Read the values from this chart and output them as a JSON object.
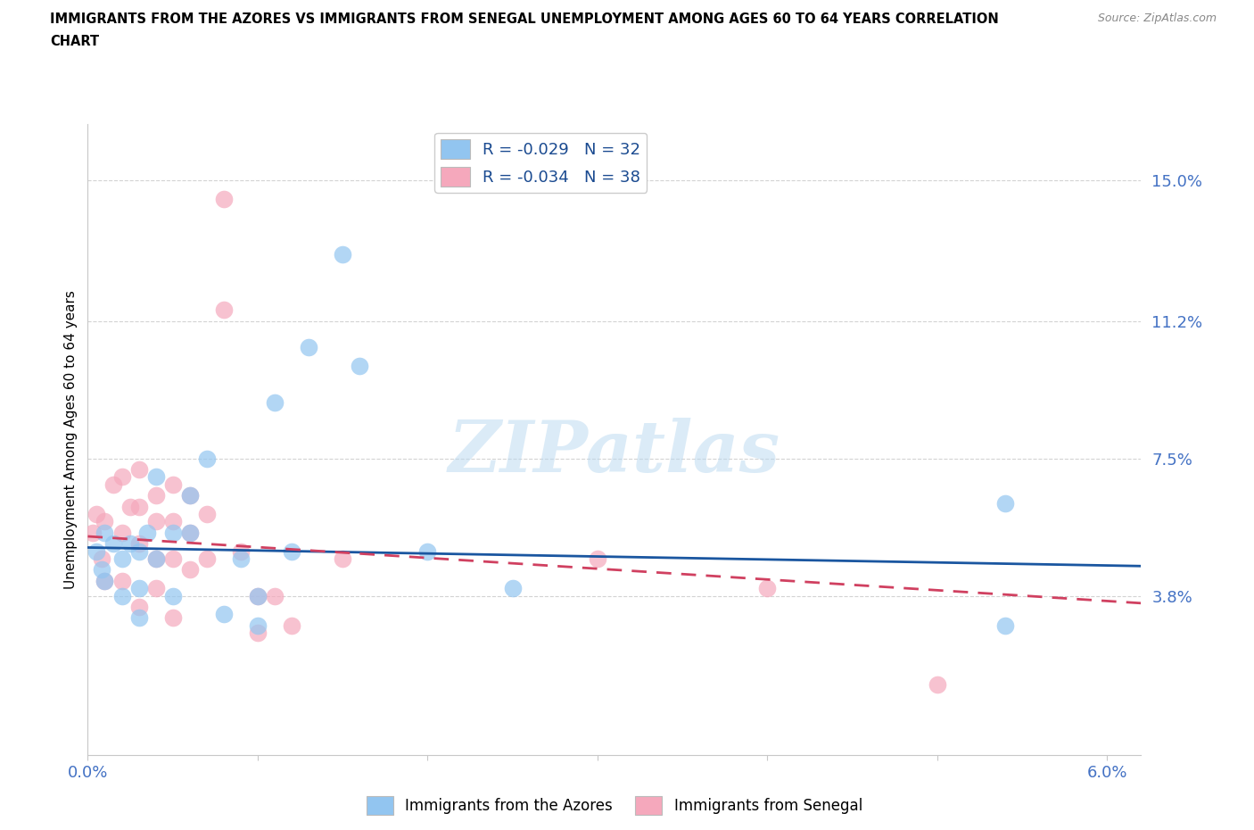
{
  "title_line1": "IMMIGRANTS FROM THE AZORES VS IMMIGRANTS FROM SENEGAL UNEMPLOYMENT AMONG AGES 60 TO 64 YEARS CORRELATION",
  "title_line2": "CHART",
  "source": "Source: ZipAtlas.com",
  "ylabel": "Unemployment Among Ages 60 to 64 years",
  "xlim": [
    0.0,
    0.062
  ],
  "ylim": [
    -0.005,
    0.165
  ],
  "yticks": [
    0.038,
    0.075,
    0.112,
    0.15
  ],
  "ytick_labels": [
    "3.8%",
    "7.5%",
    "11.2%",
    "15.0%"
  ],
  "xtick_positions": [
    0.0,
    0.01,
    0.02,
    0.03,
    0.04,
    0.05,
    0.06
  ],
  "xtick_labels": [
    "0.0%",
    "",
    "",
    "",
    "",
    "",
    "6.0%"
  ],
  "legend_bottom": [
    "Immigrants from the Azores",
    "Immigrants from Senegal"
  ],
  "azores_R": -0.029,
  "azores_N": 32,
  "senegal_R": -0.034,
  "senegal_N": 38,
  "azores_color": "#92C5F0",
  "senegal_color": "#F5A8BC",
  "azores_line_color": "#1A56A0",
  "senegal_line_color": "#D04060",
  "watermark": "ZIPatlas",
  "azores_x": [
    0.0005,
    0.0008,
    0.001,
    0.001,
    0.0015,
    0.002,
    0.002,
    0.0025,
    0.003,
    0.003,
    0.003,
    0.0035,
    0.004,
    0.004,
    0.005,
    0.005,
    0.006,
    0.006,
    0.007,
    0.008,
    0.009,
    0.01,
    0.01,
    0.011,
    0.012,
    0.013,
    0.015,
    0.016,
    0.02,
    0.025,
    0.054,
    0.054
  ],
  "azores_y": [
    0.05,
    0.045,
    0.055,
    0.042,
    0.052,
    0.048,
    0.038,
    0.052,
    0.05,
    0.04,
    0.032,
    0.055,
    0.07,
    0.048,
    0.055,
    0.038,
    0.065,
    0.055,
    0.075,
    0.033,
    0.048,
    0.038,
    0.03,
    0.09,
    0.05,
    0.105,
    0.13,
    0.1,
    0.05,
    0.04,
    0.063,
    0.03
  ],
  "senegal_x": [
    0.0003,
    0.0005,
    0.0008,
    0.001,
    0.001,
    0.0015,
    0.002,
    0.002,
    0.002,
    0.0025,
    0.003,
    0.003,
    0.003,
    0.003,
    0.004,
    0.004,
    0.004,
    0.004,
    0.005,
    0.005,
    0.005,
    0.005,
    0.006,
    0.006,
    0.006,
    0.007,
    0.007,
    0.008,
    0.008,
    0.009,
    0.01,
    0.01,
    0.011,
    0.012,
    0.015,
    0.03,
    0.04,
    0.05
  ],
  "senegal_y": [
    0.055,
    0.06,
    0.048,
    0.058,
    0.042,
    0.068,
    0.07,
    0.055,
    0.042,
    0.062,
    0.072,
    0.062,
    0.052,
    0.035,
    0.065,
    0.058,
    0.048,
    0.04,
    0.068,
    0.058,
    0.048,
    0.032,
    0.065,
    0.055,
    0.045,
    0.06,
    0.048,
    0.145,
    0.115,
    0.05,
    0.038,
    0.028,
    0.038,
    0.03,
    0.048,
    0.048,
    0.04,
    0.014
  ]
}
